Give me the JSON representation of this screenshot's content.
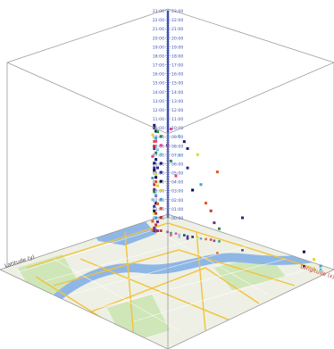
{
  "chart_data": {
    "type": "scatter",
    "title": "",
    "xlabel": "Longitude (x)",
    "ylabel": "Latitude (y)",
    "zaxis": {
      "ticks": [
        "00:00",
        "01:00",
        "02:00",
        "03:00",
        "04:00",
        "05:00",
        "06:00",
        "07:00",
        "08:00",
        "09:00",
        "10:00",
        "11:00",
        "12:00",
        "13:00",
        "14:00",
        "15:00",
        "16:00",
        "17:00",
        "18:00",
        "19:00",
        "20:00",
        "21:00",
        "22:00",
        "23:00"
      ],
      "range": [
        "00:00",
        "23:00"
      ]
    },
    "colors": {
      "axis_line": "#999999",
      "time_axis": "#3b4fb4",
      "xlabel": "#c0392b",
      "ylabel": "#444444",
      "map_land": "#eef0e5",
      "map_water": "#8fb7e6",
      "map_green": "#cfe6b8",
      "map_road": "#f2c23c"
    },
    "point_palette": [
      "#1a1a6e",
      "#2b2b8a",
      "#0a0a40",
      "#d9d928",
      "#3fa7c7",
      "#e05a1a",
      "#c0392b",
      "#6b2b9c",
      "#2e8b57",
      "#e8408c",
      "#7ac4e0"
    ],
    "series": [
      {
        "name": "",
        "points": [
          [
            0.1,
            0.18,
            11.6
          ],
          [
            0.1,
            0.18,
            11.3
          ],
          [
            0.11,
            0.18,
            11.0
          ],
          [
            0.1,
            0.19,
            10.6
          ],
          [
            0.11,
            0.18,
            10.2
          ],
          [
            0.1,
            0.18,
            9.8
          ],
          [
            0.11,
            0.19,
            9.4
          ],
          [
            0.1,
            0.18,
            9.0
          ],
          [
            0.11,
            0.18,
            8.6
          ],
          [
            0.1,
            0.19,
            8.2
          ],
          [
            0.11,
            0.18,
            7.8
          ],
          [
            0.1,
            0.18,
            7.4
          ],
          [
            0.11,
            0.19,
            7.0
          ],
          [
            0.1,
            0.18,
            6.6
          ],
          [
            0.11,
            0.18,
            6.2
          ],
          [
            0.1,
            0.19,
            5.8
          ],
          [
            0.11,
            0.18,
            5.4
          ],
          [
            0.1,
            0.18,
            5.0
          ],
          [
            0.11,
            0.19,
            4.6
          ],
          [
            0.1,
            0.18,
            4.2
          ],
          [
            0.11,
            0.18,
            3.8
          ],
          [
            0.1,
            0.19,
            3.4
          ],
          [
            0.11,
            0.18,
            3.0
          ],
          [
            0.1,
            0.18,
            2.6
          ],
          [
            0.11,
            0.19,
            2.2
          ],
          [
            0.1,
            0.18,
            1.8
          ],
          [
            0.11,
            0.18,
            1.4
          ],
          [
            0.1,
            0.19,
            1.0
          ],
          [
            0.11,
            0.18,
            0.6
          ],
          [
            0.1,
            0.18,
            0.2
          ],
          [
            0.12,
            0.18,
            11.0
          ],
          [
            0.12,
            0.19,
            10.0
          ],
          [
            0.12,
            0.18,
            9.0
          ],
          [
            0.12,
            0.19,
            8.0
          ],
          [
            0.12,
            0.18,
            7.0
          ],
          [
            0.12,
            0.19,
            6.0
          ],
          [
            0.12,
            0.18,
            5.0
          ],
          [
            0.12,
            0.19,
            4.0
          ],
          [
            0.12,
            0.18,
            3.0
          ],
          [
            0.12,
            0.19,
            2.0
          ],
          [
            0.12,
            0.18,
            1.0
          ],
          [
            0.13,
            0.17,
            10.5
          ],
          [
            0.13,
            0.17,
            9.5
          ],
          [
            0.13,
            0.17,
            8.5
          ],
          [
            0.13,
            0.17,
            7.5
          ],
          [
            0.13,
            0.17,
            6.5
          ],
          [
            0.13,
            0.17,
            5.5
          ],
          [
            0.13,
            0.17,
            4.5
          ],
          [
            0.13,
            0.17,
            3.5
          ],
          [
            0.13,
            0.17,
            2.5
          ],
          [
            0.13,
            0.17,
            1.5
          ],
          [
            0.16,
            0.16,
            9.6
          ],
          [
            0.18,
            0.16,
            8.0
          ],
          [
            0.2,
            0.15,
            6.4
          ],
          [
            0.22,
            0.15,
            8.8
          ],
          [
            0.24,
            0.14,
            10.4
          ],
          [
            0.26,
            0.14,
            7.6
          ],
          [
            0.28,
            0.13,
            5.2
          ],
          [
            0.3,
            0.12,
            9.2
          ],
          [
            0.32,
            0.12,
            6.0
          ],
          [
            0.34,
            0.11,
            4.0
          ],
          [
            0.36,
            0.1,
            3.2
          ],
          [
            0.38,
            0.1,
            2.0
          ],
          [
            0.4,
            0.09,
            1.4
          ],
          [
            0.2,
            0.18,
            11.8
          ],
          [
            0.24,
            0.17,
            11.2
          ],
          [
            0.28,
            0.16,
            10.0
          ],
          [
            0.55,
            0.1,
            3.6
          ],
          [
            0.88,
            0.06,
            1.6
          ],
          [
            0.93,
            0.05,
            1.0
          ],
          [
            0.96,
            0.04,
            0.4
          ],
          [
            0.5,
            0.2,
            9.0
          ]
        ]
      }
    ]
  }
}
